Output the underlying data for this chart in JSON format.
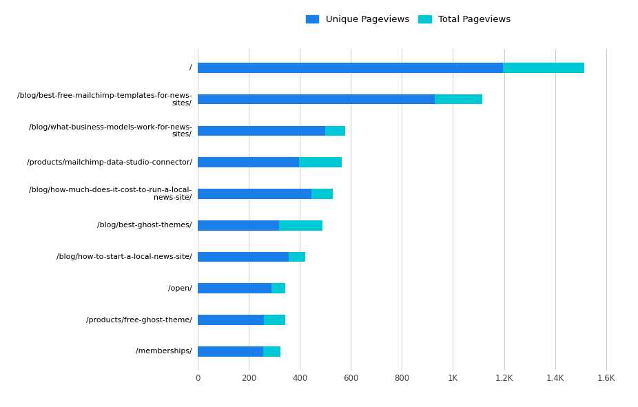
{
  "categories": [
    "/memberships/",
    "/products/free-ghost-theme/",
    "/open/",
    "/blog/how-to-start-a-local-news-site/",
    "/blog/best-ghost-themes/",
    "/blog/how-much-does-it-cost-to-run-a-local-\nnews-site/",
    "/products/mailchimp-data-studio-connector/",
    "/blog/what-business-models-work-for-news-\nsites/",
    "/blog/best-free-mailchimp-templates-for-news-\nsites/",
    "/"
  ],
  "unique_pageviews": [
    255,
    260,
    288,
    355,
    318,
    445,
    398,
    498,
    928,
    1195
  ],
  "total_pageviews": [
    325,
    342,
    342,
    422,
    488,
    528,
    563,
    578,
    1115,
    1515
  ],
  "unique_color": "#1a7fe8",
  "total_color": "#00c8d4",
  "background_color": "#ffffff",
  "legend_labels": [
    "Unique Pageviews",
    "Total Pageviews"
  ],
  "xlim": [
    0,
    1650
  ],
  "xtick_labels": [
    "0",
    "200",
    "400",
    "600",
    "800",
    "1K",
    "1.2K",
    "1.4K",
    "1.6K"
  ],
  "xtick_values": [
    0,
    200,
    400,
    600,
    800,
    1000,
    1200,
    1400,
    1600
  ],
  "bar_height": 0.32,
  "figsize": [
    9.26,
    5.91
  ],
  "dpi": 100,
  "ylabel_fontsize": 7.8,
  "xlabel_fontsize": 8.5
}
